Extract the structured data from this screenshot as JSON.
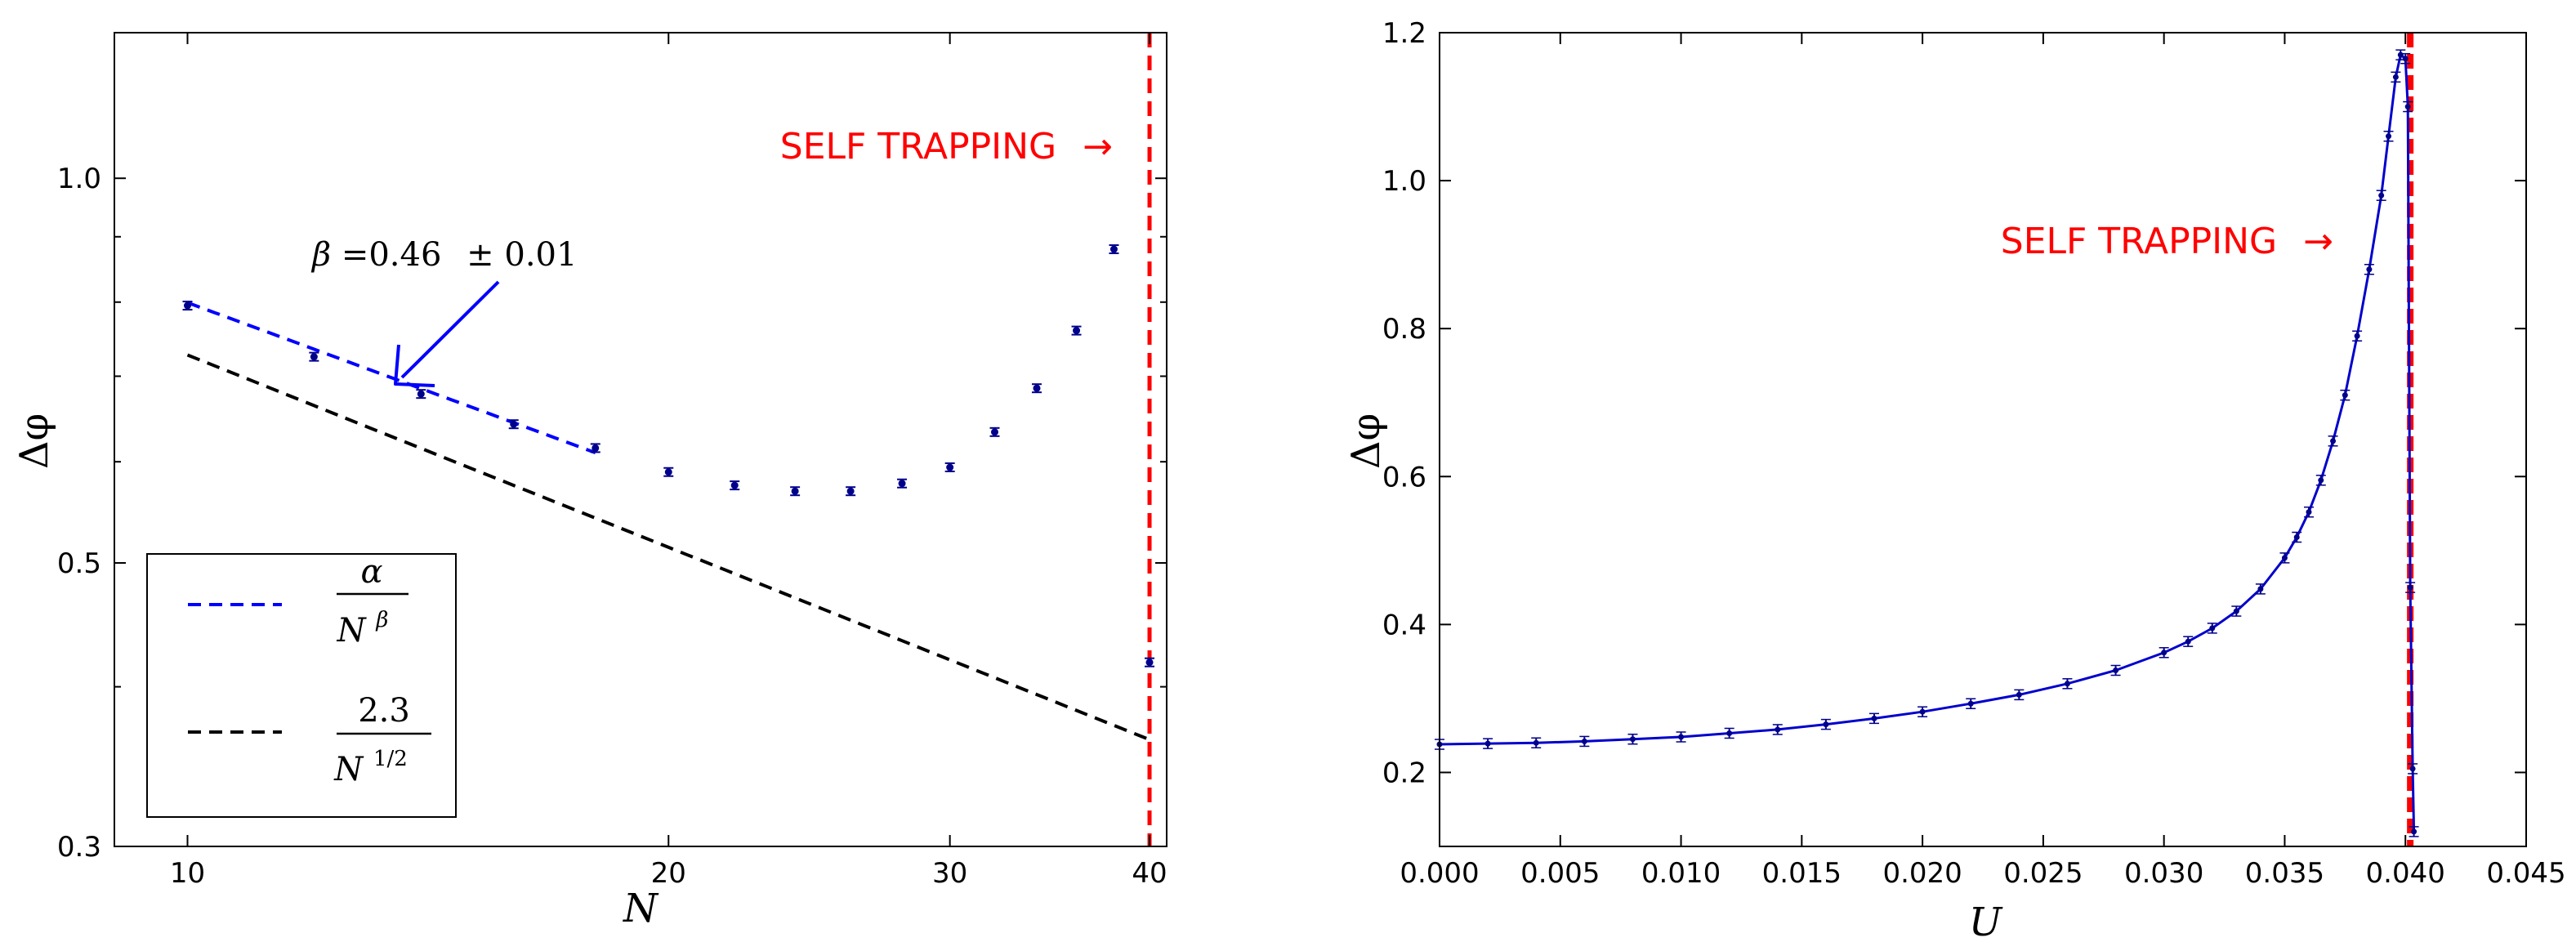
{
  "chart_data": [
    {
      "type": "scatter",
      "scale": "log-log",
      "xlabel": "N",
      "ylabel": "Δφ",
      "xlim": [
        9.0,
        41.0
      ],
      "ylim": [
        0.3,
        1.3
      ],
      "x_ticks": [
        10,
        20,
        30,
        40
      ],
      "x_tick_labels": [
        "10",
        "20",
        "30",
        "40"
      ],
      "y_ticks": [
        0.3,
        0.5,
        1.0
      ],
      "y_tick_labels": [
        "0.3",
        "0.5",
        "1.0"
      ],
      "series": [
        {
          "name": "data",
          "style": "points with error bars",
          "color": "#00008b",
          "x": [
            10,
            12,
            14,
            16,
            18,
            20,
            22,
            24,
            26,
            28,
            30,
            32,
            34,
            36,
            38,
            40
          ],
          "y": [
            0.795,
            0.725,
            0.678,
            0.642,
            0.615,
            0.589,
            0.575,
            0.569,
            0.569,
            0.577,
            0.594,
            0.633,
            0.685,
            0.76,
            0.88,
            0.418
          ]
        },
        {
          "name": "fit",
          "legend_label_numerator": "α",
          "legend_label_denominator": "N",
          "legend_label_exponent": "β",
          "style": "dashed",
          "color": "#0000ff",
          "x_range": [
            10,
            18
          ],
          "amplitude": 2.305,
          "exponent": 0.46
        },
        {
          "name": "reference",
          "legend_label_numerator": "2.3",
          "legend_label_denominator": "N",
          "legend_label_exponent": "1/2",
          "style": "dashed",
          "color": "#000000",
          "x_range": [
            10,
            40
          ],
          "amplitude": 2.3,
          "exponent": 0.5
        }
      ],
      "vline": {
        "x": 40,
        "color": "#ff0000",
        "style": "dashed"
      },
      "annotations": {
        "self_trapping": "SELF TRAPPING",
        "arrow_glyph": "→",
        "beta_symbol": "β",
        "beta_text": "=0.46",
        "beta_err": "± 0.01"
      }
    },
    {
      "type": "line",
      "xlabel": "U",
      "ylabel": "Δφ",
      "xlim": [
        0.0,
        0.045
      ],
      "ylim": [
        0.1,
        1.2
      ],
      "x_ticks": [
        0.0,
        0.005,
        0.01,
        0.015,
        0.02,
        0.025,
        0.03,
        0.035,
        0.04,
        0.045
      ],
      "x_tick_labels": [
        "0.000",
        "0.005",
        "0.010",
        "0.015",
        "0.020",
        "0.025",
        "0.030",
        "0.035",
        "0.040",
        "0.045"
      ],
      "y_ticks": [
        0.2,
        0.4,
        0.6,
        0.8,
        1.0,
        1.2
      ],
      "y_tick_labels": [
        "0.2",
        "0.4",
        "0.6",
        "0.8",
        "1.0",
        "1.2"
      ],
      "series": [
        {
          "name": "data",
          "style": "line with error bar markers",
          "color": "#0000cd",
          "x": [
            0.0,
            0.002,
            0.004,
            0.006,
            0.008,
            0.01,
            0.012,
            0.014,
            0.016,
            0.018,
            0.02,
            0.022,
            0.024,
            0.026,
            0.028,
            0.03,
            0.031,
            0.032,
            0.033,
            0.034,
            0.035,
            0.0355,
            0.036,
            0.0365,
            0.037,
            0.0375,
            0.038,
            0.0385,
            0.039,
            0.0393,
            0.0396,
            0.0398,
            0.04,
            0.0401,
            0.0402,
            0.0403,
            0.04035
          ],
          "y": [
            0.238,
            0.239,
            0.24,
            0.242,
            0.245,
            0.248,
            0.253,
            0.258,
            0.265,
            0.273,
            0.282,
            0.293,
            0.305,
            0.32,
            0.338,
            0.362,
            0.377,
            0.395,
            0.418,
            0.448,
            0.49,
            0.518,
            0.552,
            0.595,
            0.648,
            0.71,
            0.79,
            0.88,
            0.98,
            1.06,
            1.14,
            1.17,
            1.165,
            1.1,
            0.45,
            0.205,
            0.12
          ]
        }
      ],
      "vline": {
        "x": 0.0402,
        "color": "#ff0000",
        "style": "dashed"
      },
      "annotations": {
        "self_trapping": "SELF TRAPPING",
        "arrow_glyph": "→"
      }
    }
  ],
  "colors": {
    "data_points": "#00008b",
    "fit_line": "#0000ff",
    "reference_line": "#000000",
    "self_trapping": "#ff0000",
    "curve": "#0000cd"
  }
}
